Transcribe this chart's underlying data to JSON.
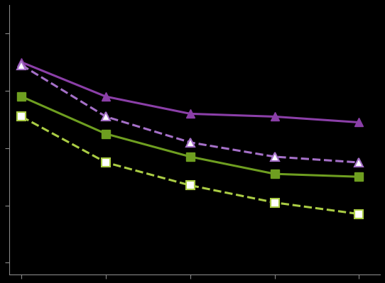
{
  "x": [
    0,
    2,
    4,
    6,
    8
  ],
  "purple_solid": [
    8.5,
    7.9,
    7.6,
    7.55,
    7.45
  ],
  "purple_dashed": [
    8.45,
    7.55,
    7.1,
    6.85,
    6.75
  ],
  "green_solid": [
    7.9,
    7.25,
    6.85,
    6.55,
    6.5
  ],
  "green_dashed": [
    7.55,
    6.75,
    6.35,
    6.05,
    5.85
  ],
  "purple_color": "#8B3FA8",
  "purple_dashed_color": "#A570C8",
  "green_solid_color": "#6E9E20",
  "green_dashed_color": "#AACC44",
  "background_color": "#000000",
  "spine_color": "#888888",
  "tick_color": "#888888",
  "linewidth": 2.2,
  "marker_size": 9,
  "figsize": [
    5.42,
    3.99
  ],
  "dpi": 100,
  "xlim": [
    -0.3,
    8.5
  ],
  "ylim": [
    4.8,
    9.5
  ],
  "yticks": [
    5,
    6,
    7,
    8,
    9
  ],
  "xticks": [
    0,
    2,
    4,
    6,
    8
  ]
}
